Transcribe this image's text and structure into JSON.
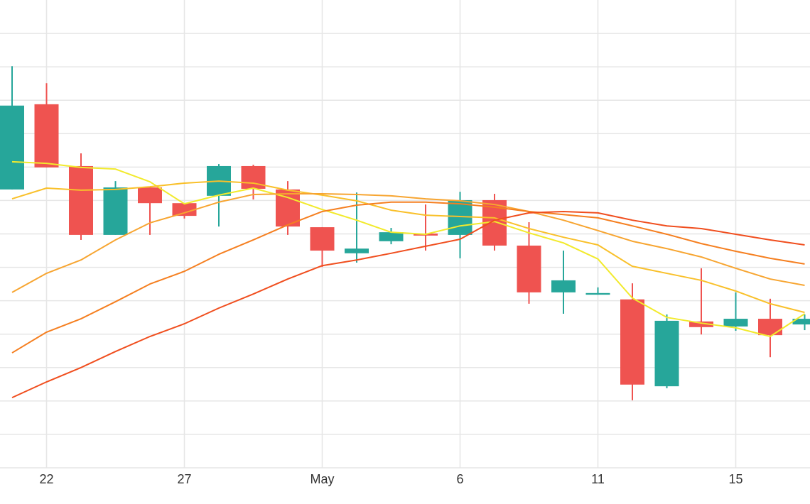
{
  "chart_data": {
    "type": "candlestick",
    "categories": [
      null,
      "22",
      null,
      null,
      null,
      "27",
      null,
      null,
      null,
      "May",
      null,
      null,
      null,
      "6",
      null,
      null,
      null,
      "11",
      null,
      null,
      null,
      "15",
      null,
      null
    ],
    "open": [
      8.33,
      10.88,
      9.03,
      6.97,
      8.39,
      7.92,
      8.14,
      9.03,
      8.33,
      7.2,
      6.42,
      6.78,
      7.01,
      6.97,
      8.01,
      6.65,
      5.25,
      5.18,
      5.04,
      2.44,
      4.38,
      4.23,
      4.46,
      4.29
    ],
    "high": [
      12.02,
      11.51,
      9.41,
      8.58,
      8.39,
      7.92,
      9.09,
      9.07,
      8.58,
      7.2,
      8.24,
      7.18,
      7.88,
      8.26,
      8.2,
      7.35,
      6.5,
      5.4,
      5.52,
      4.59,
      5.97,
      5.25,
      5.06,
      4.59
    ],
    "low": [
      8.33,
      8.99,
      6.82,
      6.97,
      6.97,
      7.46,
      7.22,
      8.03,
      6.97,
      6.01,
      6.14,
      6.69,
      6.5,
      6.27,
      6.5,
      4.91,
      4.61,
      5.18,
      2.02,
      2.38,
      3.99,
      4.1,
      3.31,
      4.12
    ],
    "close": [
      10.84,
      8.99,
      6.97,
      8.39,
      7.92,
      7.54,
      9.03,
      8.35,
      7.22,
      6.5,
      6.56,
      7.05,
      6.95,
      8.01,
      6.65,
      5.25,
      5.61,
      5.23,
      2.49,
      4.4,
      4.21,
      4.46,
      3.97,
      4.46
    ],
    "up_color": "#26a69a",
    "down_color": "#ef5350",
    "overlays": [
      {
        "color": "#f2ea2c",
        "values": [
          9.16,
          9.11,
          8.99,
          8.94,
          8.56,
          7.9,
          8.16,
          8.37,
          8.09,
          7.73,
          7.41,
          7.05,
          6.99,
          7.24,
          7.37,
          7.03,
          6.73,
          6.25,
          5.08,
          4.5,
          4.33,
          4.19,
          3.93,
          4.61
        ]
      },
      {
        "color": "#f9c02a",
        "values": [
          8.05,
          8.37,
          8.31,
          8.33,
          8.41,
          8.52,
          8.58,
          8.52,
          8.31,
          8.16,
          7.99,
          7.71,
          7.56,
          7.52,
          7.48,
          7.16,
          6.9,
          6.67,
          6.03,
          5.82,
          5.61,
          5.29,
          4.91,
          4.65
        ]
      },
      {
        "color": "#f7a531",
        "values": [
          5.25,
          5.82,
          6.22,
          6.82,
          7.33,
          7.63,
          7.95,
          8.18,
          8.2,
          8.2,
          8.18,
          8.14,
          8.05,
          7.99,
          7.88,
          7.67,
          7.41,
          7.1,
          6.78,
          6.56,
          6.31,
          5.97,
          5.65,
          5.46
        ]
      },
      {
        "color": "#f57f20",
        "values": [
          3.44,
          4.06,
          4.46,
          4.97,
          5.5,
          5.88,
          6.39,
          6.82,
          7.27,
          7.67,
          7.86,
          7.95,
          7.95,
          7.9,
          7.8,
          7.67,
          7.58,
          7.48,
          7.24,
          6.99,
          6.71,
          6.48,
          6.27,
          6.1
        ]
      },
      {
        "color": "#f04e1e",
        "values": [
          2.1,
          2.57,
          3.0,
          3.48,
          3.93,
          4.31,
          4.78,
          5.2,
          5.65,
          6.05,
          6.22,
          6.42,
          6.63,
          6.84,
          7.41,
          7.63,
          7.67,
          7.63,
          7.41,
          7.24,
          7.16,
          6.99,
          6.82,
          6.67
        ]
      }
    ],
    "ylim": [
      0,
      14
    ],
    "yticks": [
      1,
      2,
      3,
      4,
      5,
      6,
      7,
      8,
      9,
      10,
      11,
      12,
      13
    ],
    "ytick_labels": false,
    "grid": true
  }
}
